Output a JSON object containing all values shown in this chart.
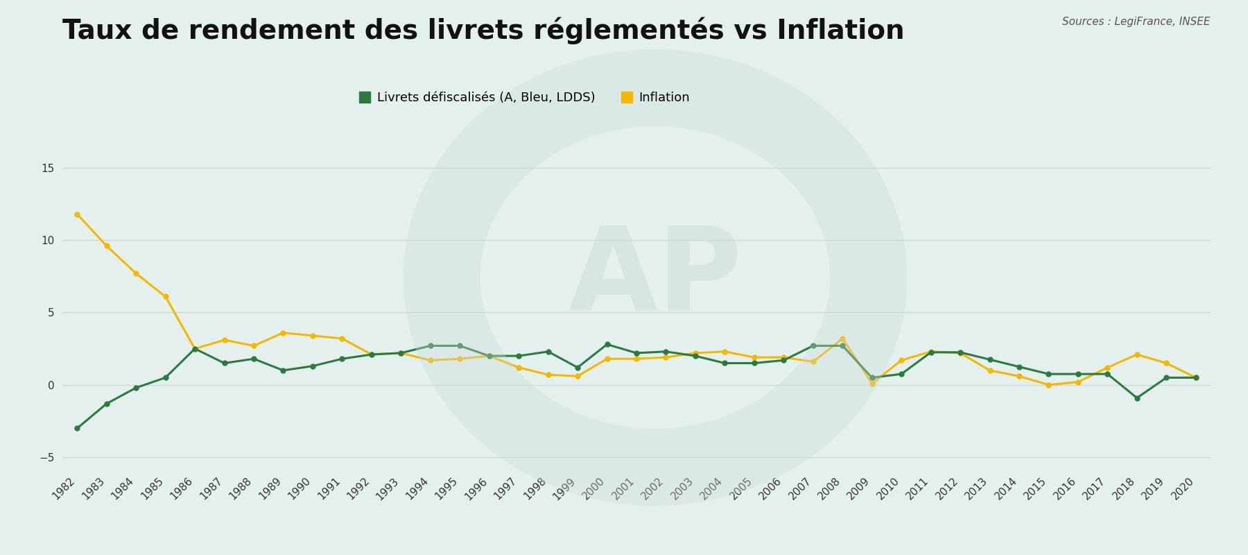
{
  "title": "Taux de rendement des livrets réglementés vs Inflation",
  "source": "Sources : LegiFrance, INSEE",
  "legend_livrets": "Livrets défiscalisés (A, Bleu, LDDS)",
  "legend_inflation": "Inflation",
  "years": [
    1982,
    1983,
    1984,
    1985,
    1986,
    1987,
    1988,
    1989,
    1990,
    1991,
    1992,
    1993,
    1994,
    1995,
    1996,
    1997,
    1998,
    1999,
    2000,
    2001,
    2002,
    2003,
    2004,
    2005,
    2006,
    2007,
    2008,
    2009,
    2010,
    2011,
    2012,
    2013,
    2014,
    2015,
    2016,
    2017,
    2018,
    2019,
    2020
  ],
  "livrets": [
    -3.0,
    -1.3,
    -0.2,
    0.5,
    2.5,
    1.5,
    1.8,
    1.0,
    1.3,
    1.8,
    2.1,
    2.2,
    2.7,
    2.7,
    2.0,
    2.0,
    2.3,
    1.2,
    2.8,
    2.2,
    2.3,
    2.0,
    1.5,
    1.5,
    1.7,
    2.7,
    2.7,
    0.5,
    0.75,
    2.25,
    2.25,
    1.75,
    1.25,
    0.75,
    0.75,
    0.75,
    -0.9,
    0.5,
    0.5
  ],
  "inflation": [
    11.8,
    9.6,
    7.7,
    6.1,
    2.5,
    3.1,
    2.7,
    3.6,
    3.4,
    3.2,
    2.1,
    2.2,
    1.7,
    1.8,
    2.0,
    1.2,
    0.7,
    0.6,
    1.8,
    1.8,
    1.9,
    2.2,
    2.3,
    1.9,
    1.9,
    1.6,
    3.2,
    0.1,
    1.7,
    2.3,
    2.2,
    1.0,
    0.6,
    0.0,
    0.2,
    1.2,
    2.1,
    1.5,
    0.5
  ],
  "color_livrets": "#2d7a40",
  "color_inflation": "#f5b800",
  "background_color": "#e4f0ee",
  "ylim": [
    -6,
    17
  ],
  "yticks": [
    -5,
    0,
    5,
    10,
    15
  ],
  "line_width": 2.2,
  "marker_size": 5,
  "title_fontsize": 28,
  "axis_fontsize": 11,
  "legend_fontsize": 13,
  "grid_color": "#c5d8d4",
  "watermark_color": "#ccddd8"
}
